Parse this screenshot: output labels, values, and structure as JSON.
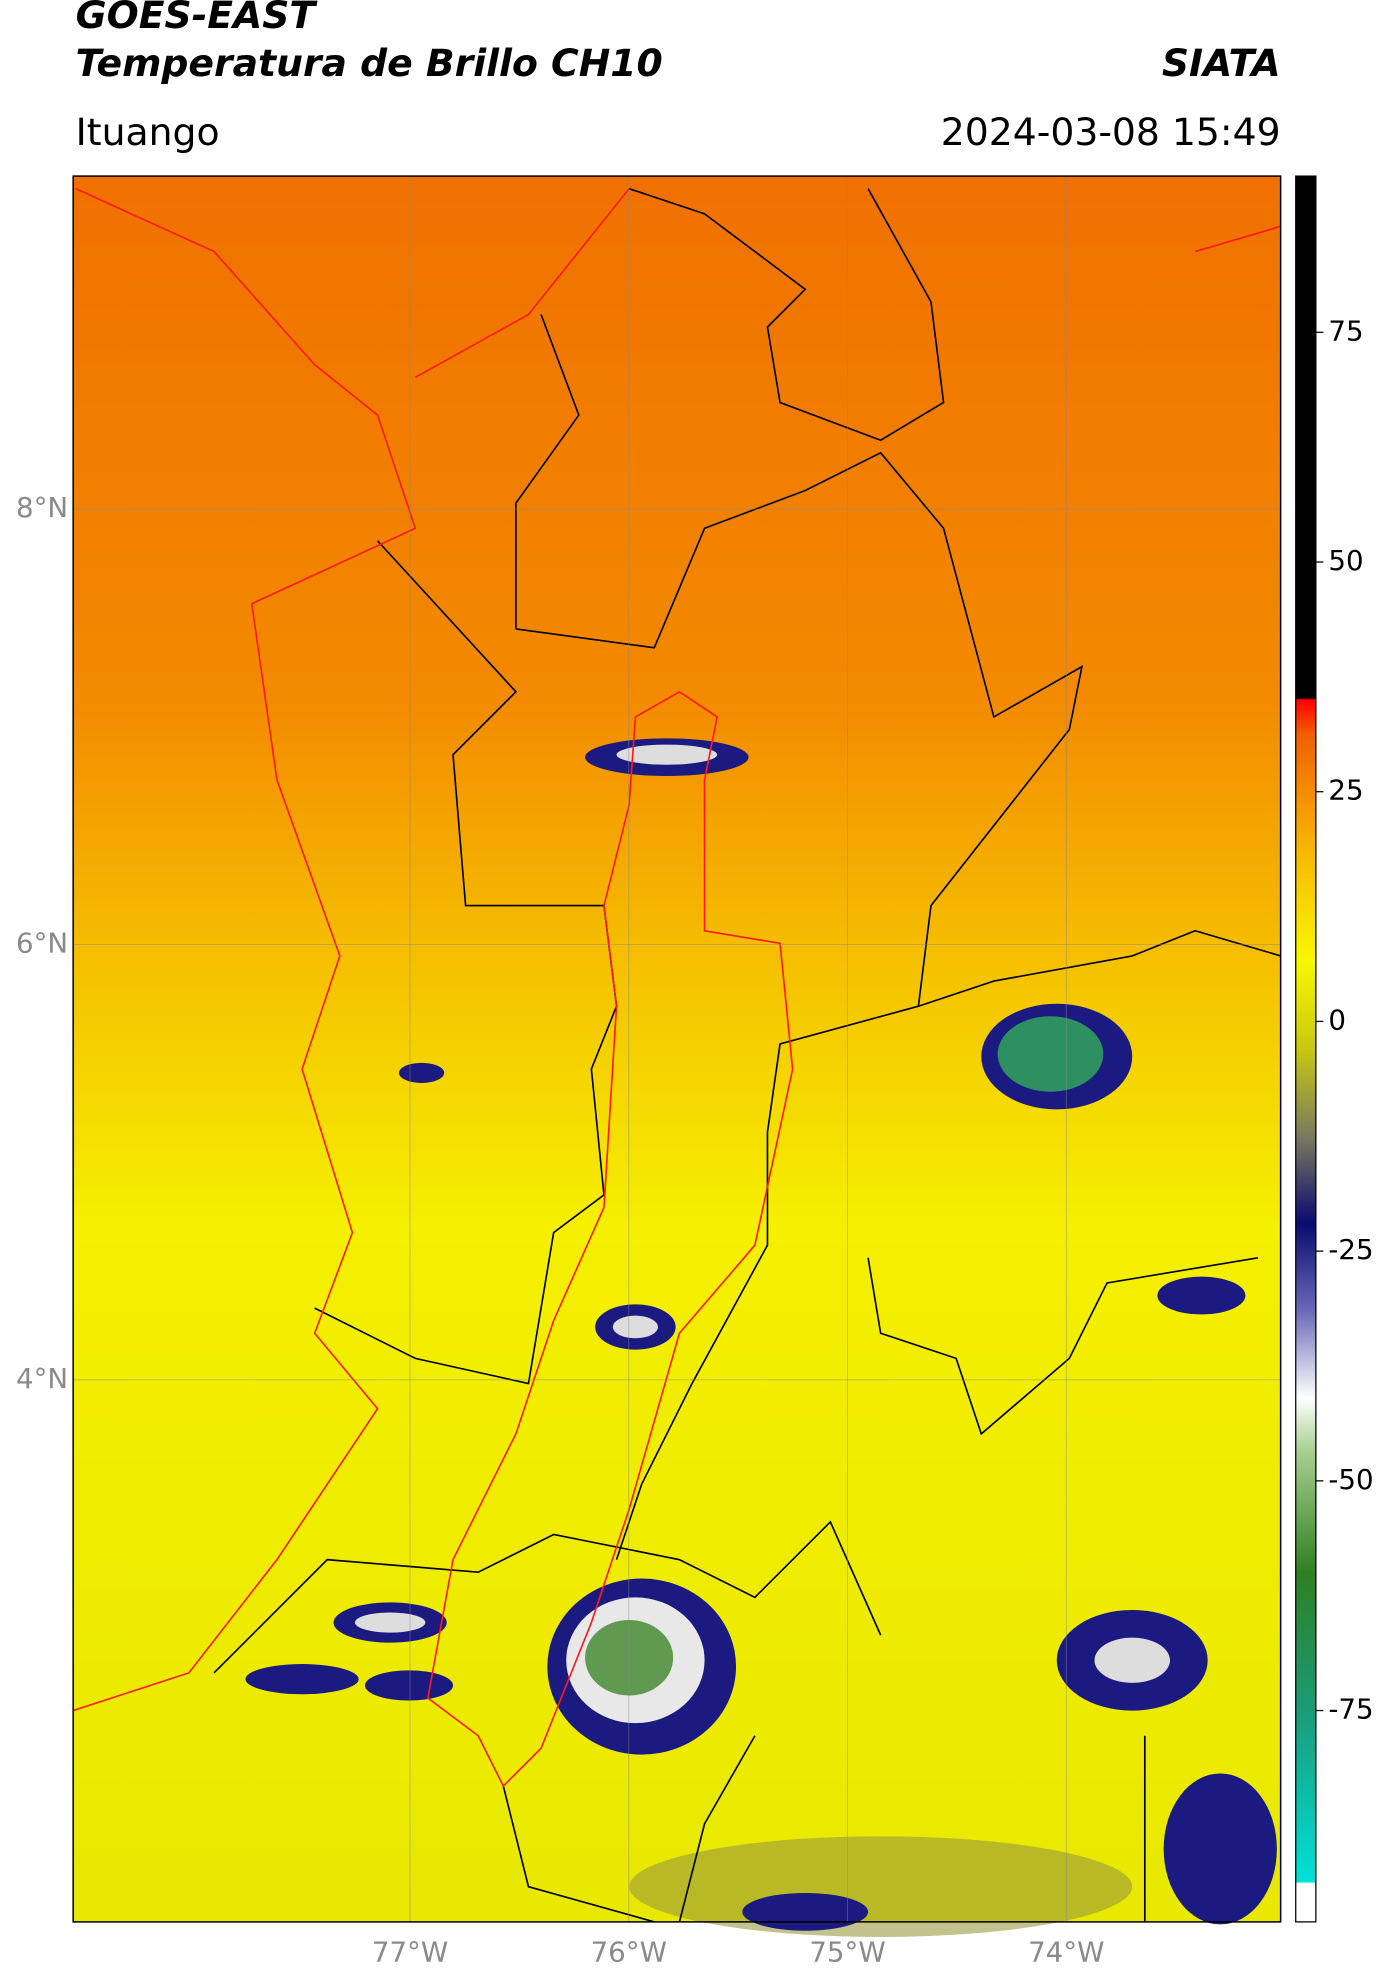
{
  "header": {
    "title": "GOES-EAST",
    "subtitle": "Temperatura de Brillo CH10",
    "source": "SIATA",
    "location": "Ituango",
    "datetime": "2024-03-08 15:49"
  },
  "map": {
    "xlim": [
      -78.54,
      -73.02
    ],
    "ylim": [
      1.51,
      9.53
    ],
    "xticks": [
      {
        "value": -77,
        "label": "77°W"
      },
      {
        "value": -76,
        "label": "76°W"
      },
      {
        "value": -75,
        "label": "75°W"
      },
      {
        "value": -74,
        "label": "74°W"
      }
    ],
    "yticks": [
      {
        "value": 8,
        "label": "8°N"
      },
      {
        "value": 6,
        "label": "6°N"
      },
      {
        "value": 4,
        "label": "4°N"
      }
    ],
    "grid": true
  },
  "colorbar": {
    "ylim": [
      -98,
      92
    ],
    "yticks": [
      75,
      50,
      25,
      0,
      -25,
      -50,
      -75
    ]
  }
}
